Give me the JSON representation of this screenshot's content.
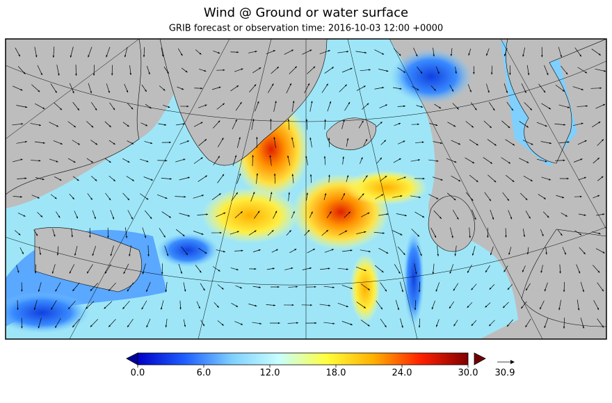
{
  "title": "Wind @ Ground or water surface",
  "subtitle": "GRIB forecast or observation time: 2016-10-03 12:00 +0000",
  "colorbar": {
    "lim": [
      0,
      30
    ],
    "ticks": [
      {
        "value": 0,
        "label": "0.0"
      },
      {
        "value": 6,
        "label": "6.0"
      },
      {
        "value": 12,
        "label": "12.0"
      },
      {
        "value": 18,
        "label": "18.0"
      },
      {
        "value": 24,
        "label": "24.0"
      },
      {
        "value": 30,
        "label": "30.0"
      }
    ],
    "colors": [
      "#0000c8",
      "#1f5fff",
      "#7fd0ff",
      "#c8ffff",
      "#ffff3c",
      "#ffb000",
      "#ff2000",
      "#800000"
    ],
    "under_color": "#0000a0",
    "over_color": "#700000"
  },
  "quiver_key": {
    "value": 30.9
  }
}
